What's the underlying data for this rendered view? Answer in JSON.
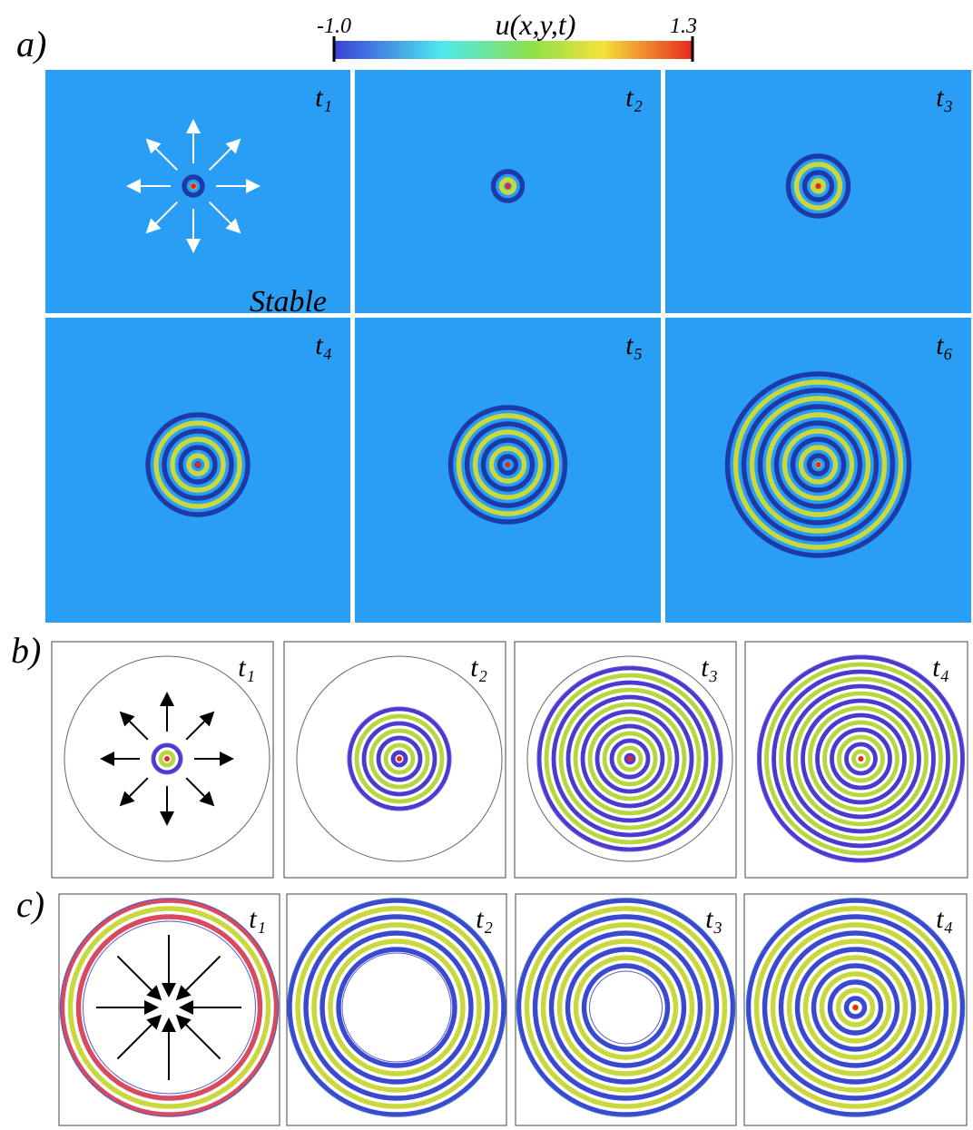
{
  "colorbar": {
    "min": "-1.0",
    "max": "1.3",
    "label": "u(x,y,t)"
  },
  "panels": [
    {
      "label": "a)",
      "frames": [
        {
          "time": "t₁",
          "note": "Stable"
        },
        {
          "time": "t₂"
        },
        {
          "time": "t₃"
        },
        {
          "time": "t₄"
        },
        {
          "time": "t₅"
        },
        {
          "time": "t₆"
        }
      ]
    },
    {
      "label": "b)",
      "frames": [
        {
          "time": "t₁"
        },
        {
          "time": "t₂"
        },
        {
          "time": "t₃"
        },
        {
          "time": "t₄"
        }
      ]
    },
    {
      "label": "c)",
      "frames": [
        {
          "time": "t₁"
        },
        {
          "time": "t₂"
        },
        {
          "time": "t₃"
        },
        {
          "time": "t₄"
        }
      ]
    }
  ]
}
